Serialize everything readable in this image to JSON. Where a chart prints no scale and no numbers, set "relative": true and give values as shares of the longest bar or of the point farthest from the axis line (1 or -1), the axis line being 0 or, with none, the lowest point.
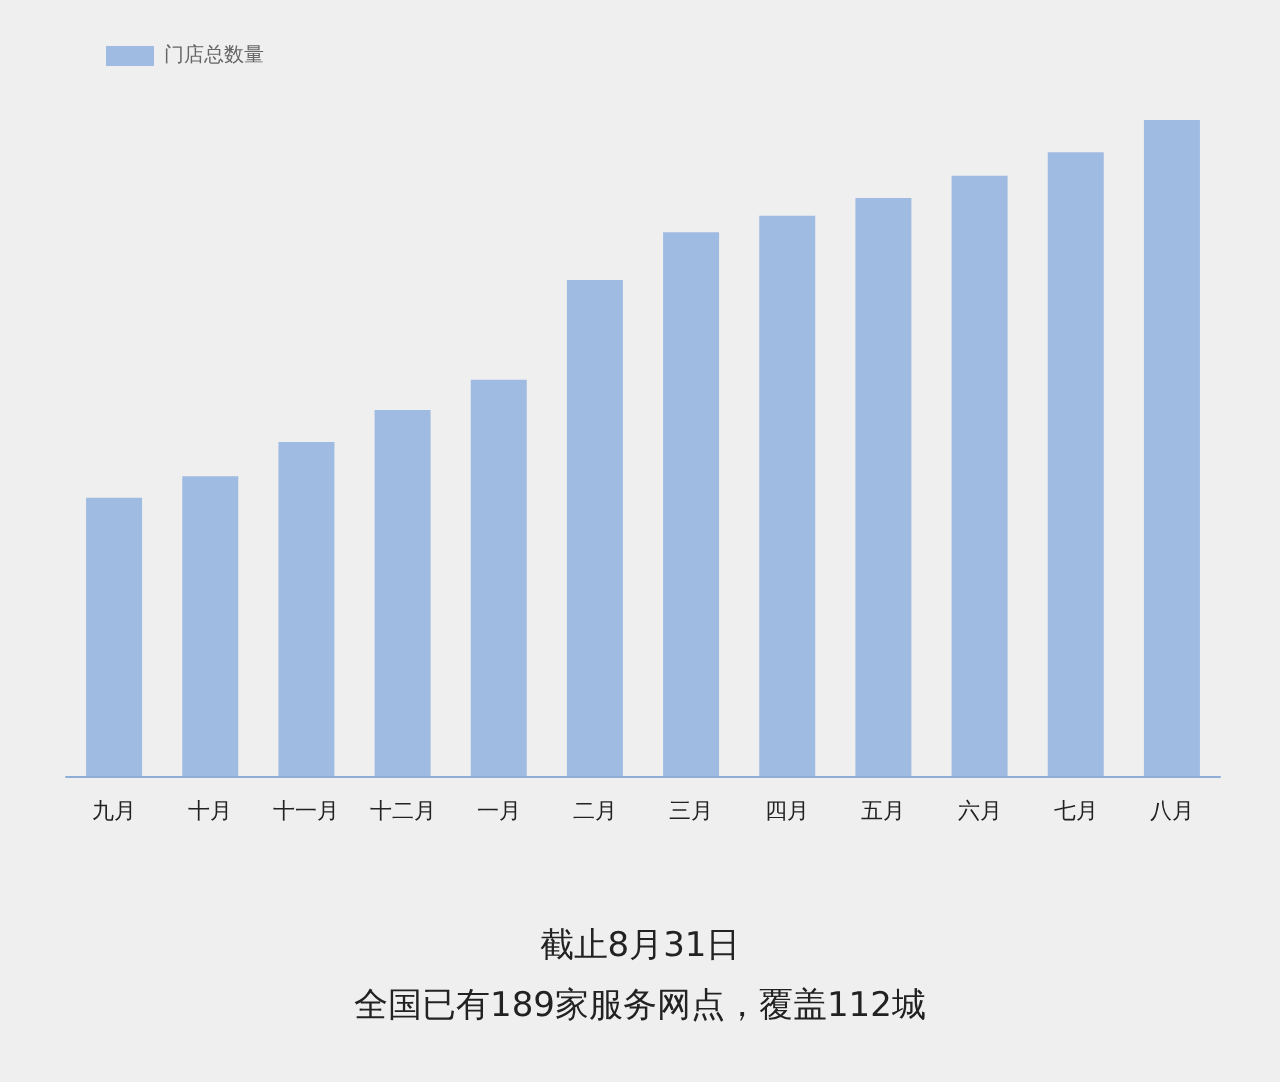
{
  "chart_data": {
    "type": "bar",
    "relative": true,
    "legend": "top left",
    "categories": [
      "九月",
      "十月",
      "十一月",
      "十二月",
      "一月",
      "二月",
      "三月",
      "四月",
      "五月",
      "六月",
      "七月",
      "八月"
    ],
    "series": [
      {
        "name": "门店总数量",
        "color": "#a0bbe2",
        "values": [
          0.424,
          0.457,
          0.509,
          0.558,
          0.604,
          0.756,
          0.829,
          0.854,
          0.881,
          0.915,
          0.951,
          1
        ]
      }
    ],
    "annotations": [
      "截止8月31日",
      "全国已有189家服务网点，覆盖112城"
    ]
  }
}
